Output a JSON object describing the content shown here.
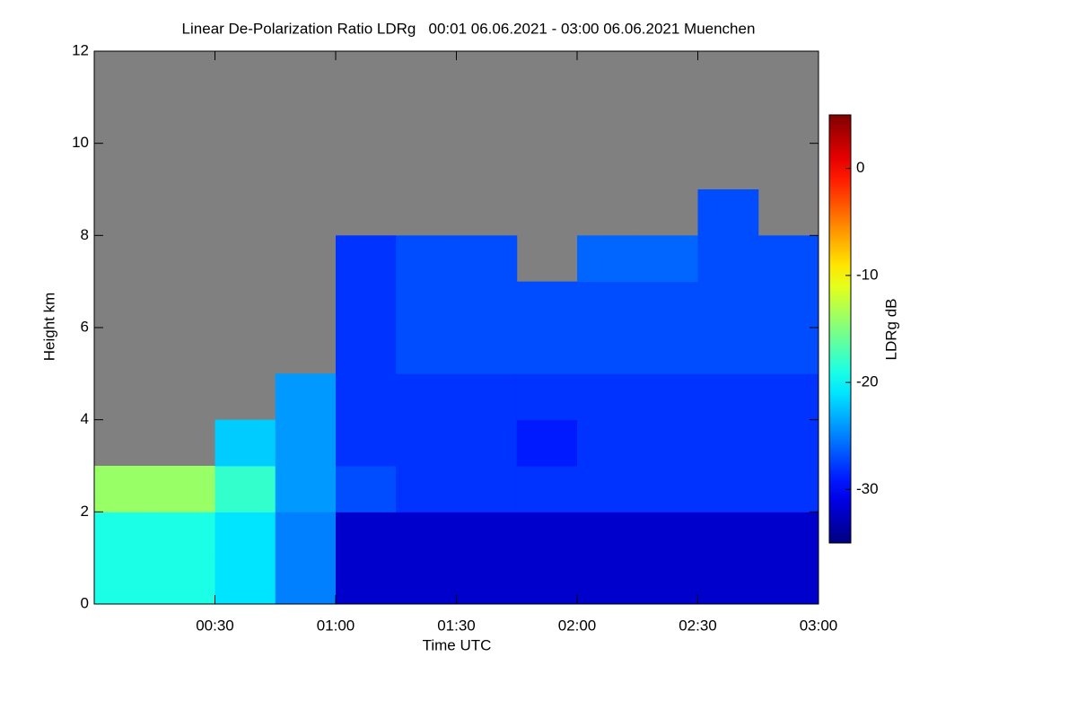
{
  "chart_data": {
    "type": "heatmap",
    "title": "Linear De-Polarization Ratio LDRg   00:01 06.06.2021 - 03:00 06.06.2021 Muenchen",
    "x_label": "Time UTC",
    "y_label": "Height km",
    "colorbar_label": "LDRg dB",
    "bins": [
      0,
      15,
      30,
      45,
      60,
      75,
      90,
      105,
      120,
      135,
      150,
      165,
      180
    ],
    "y_bins": [
      0,
      1,
      2,
      3,
      4,
      5,
      6,
      7,
      8,
      9,
      10,
      11,
      12
    ],
    "values": [
      [
        -19,
        -19,
        -14,
        null,
        null,
        null,
        null,
        null,
        null,
        null,
        null,
        null
      ],
      [
        -19,
        -19,
        -14,
        null,
        null,
        null,
        null,
        null,
        null,
        null,
        null,
        null
      ],
      [
        -21,
        -21,
        -18,
        -22,
        null,
        null,
        null,
        null,
        null,
        null,
        null,
        null
      ],
      [
        -25,
        -25,
        -24,
        -24,
        -24,
        null,
        null,
        null,
        null,
        null,
        null,
        null
      ],
      [
        -32,
        -32,
        -27,
        -28,
        -28,
        -28,
        -28,
        -28,
        null,
        null,
        null,
        null
      ],
      [
        -32,
        -32,
        -28,
        -28,
        -28,
        -27,
        -27,
        -27,
        null,
        null,
        null,
        null
      ],
      [
        -32,
        -32,
        -28,
        -28,
        -28,
        -27,
        -27,
        -27,
        null,
        null,
        null,
        null
      ],
      [
        -32,
        -32,
        -28,
        -29,
        -28,
        -27,
        -27,
        null,
        null,
        null,
        null,
        null
      ],
      [
        -32,
        -32,
        -28,
        -28,
        -28,
        -27,
        -27,
        -26,
        null,
        null,
        null,
        null
      ],
      [
        -32,
        -32,
        -28,
        -28,
        -28,
        -27,
        -27,
        -26,
        null,
        null,
        null,
        null
      ],
      [
        -32,
        -32,
        -28,
        -28,
        -28,
        -27,
        -27,
        -27,
        -27,
        null,
        null,
        null
      ],
      [
        -32,
        -32,
        -28,
        -28,
        -28,
        -27,
        -27,
        -27,
        null,
        null,
        null,
        null
      ]
    ],
    "null_color": "#808080",
    "colormap": "jet",
    "xlim": [
      0,
      180
    ],
    "xticks": [
      {
        "value": 30,
        "label": "00:30"
      },
      {
        "value": 60,
        "label": "01:00"
      },
      {
        "value": 90,
        "label": "01:30"
      },
      {
        "value": 120,
        "label": "02:00"
      },
      {
        "value": 150,
        "label": "02:30"
      },
      {
        "value": 180,
        "label": "03:00"
      }
    ],
    "ylim": [
      0,
      12
    ],
    "yticks": [
      0,
      2,
      4,
      6,
      8,
      10,
      12
    ],
    "clim": [
      -35,
      5
    ],
    "cticks": [
      0,
      -10,
      -20,
      -30
    ]
  }
}
